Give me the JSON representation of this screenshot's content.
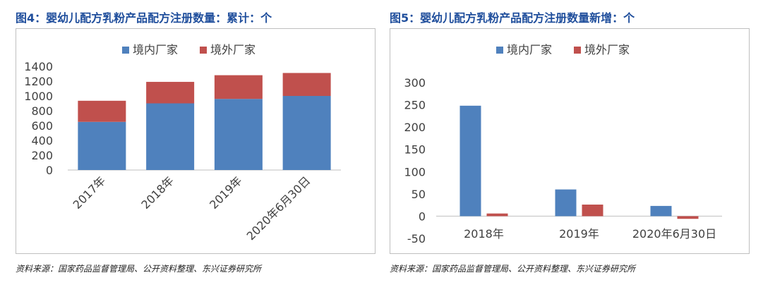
{
  "charts": [
    {
      "header": "图4：婴幼儿配方乳粉产品配方注册数量：累计：个",
      "source": "资料来源：国家药品监督管理局、公开资料整理、东兴证券研究所",
      "chart_data": {
        "type": "bar",
        "stacked": true,
        "categories": [
          "2017年",
          "2018年",
          "2019年",
          "2020年6月30日"
        ],
        "series": [
          {
            "name": "境内厂家",
            "values": [
              650,
              900,
              960,
              1000
            ],
            "color": "#4F81BD"
          },
          {
            "name": "境外厂家",
            "values": [
              285,
              290,
              320,
              310
            ],
            "color": "#C0504D"
          }
        ],
        "yticks": [
          "0",
          "200",
          "400",
          "600",
          "800",
          "1000",
          "1200",
          "1400"
        ],
        "ylim": [
          0,
          1400
        ],
        "legend": "top",
        "grid": false
      }
    },
    {
      "header": "图5：婴幼儿配方乳粉产品配方注册数量新增：个",
      "source": "资料来源：国家药品监督管理局、公开资料整理、东兴证券研究所",
      "chart_data": {
        "type": "bar",
        "stacked": false,
        "categories": [
          "2018年",
          "2019年",
          "2020年6月30日"
        ],
        "series": [
          {
            "name": "境内厂家",
            "values": [
              248,
              60,
              23
            ],
            "color": "#4F81BD"
          },
          {
            "name": "境外厂家",
            "values": [
              6,
              26,
              -6
            ],
            "color": "#C0504D"
          }
        ],
        "yticks": [
          "-50",
          "0",
          "50",
          "100",
          "150",
          "200",
          "250",
          "300"
        ],
        "ylim": [
          -50,
          300
        ],
        "legend": "top",
        "grid": false
      }
    }
  ]
}
